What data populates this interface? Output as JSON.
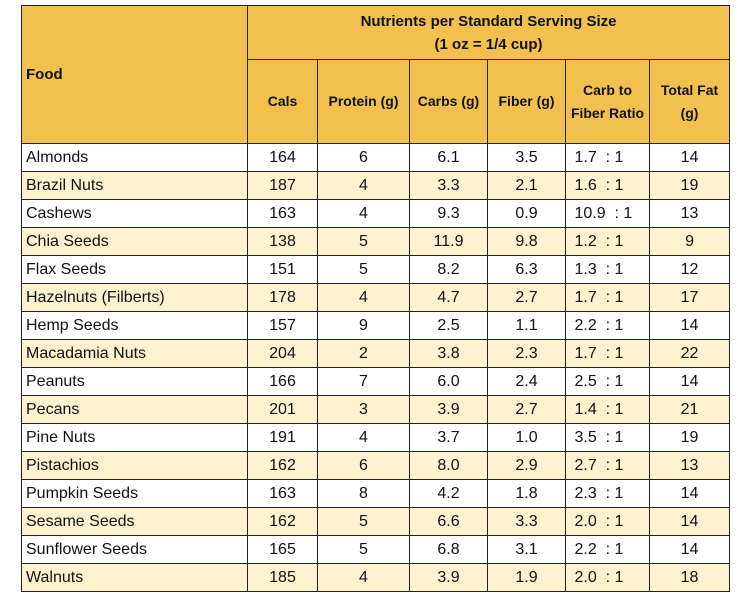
{
  "table": {
    "food_header": "Food",
    "group_header_line1": "Nutrients per Standard Serving Size",
    "group_header_line2": "(1 oz = 1/4 cup)",
    "columns": [
      "Cals",
      "Protein (g)",
      "Carbs (g)",
      "Fiber (g)",
      "Carb to\nFiber Ratio",
      "Total Fat\n(g)"
    ],
    "columns_display": {
      "cals": "Cals",
      "protein": "Protein (g)",
      "carbs": "Carbs (g)",
      "fiber": "Fiber (g)",
      "ratio_line1": "Carb to",
      "ratio_line2": "Fiber Ratio",
      "fat_line1": "Total Fat",
      "fat_line2": "(g)"
    },
    "rows": [
      {
        "food": "Almonds",
        "cals": "164",
        "protein": "6",
        "carbs": "6.1",
        "fiber": "3.5",
        "ratio": "1.7  : 1",
        "fat": "14"
      },
      {
        "food": "Brazil Nuts",
        "cals": "187",
        "protein": "4",
        "carbs": "3.3",
        "fiber": "2.1",
        "ratio": "1.6  : 1",
        "fat": "19"
      },
      {
        "food": "Cashews",
        "cals": "163",
        "protein": "4",
        "carbs": "9.3",
        "fiber": "0.9",
        "ratio": "10.9  : 1",
        "fat": "13"
      },
      {
        "food": "Chia Seeds",
        "cals": "138",
        "protein": "5",
        "carbs": "11.9",
        "fiber": "9.8",
        "ratio": "1.2  : 1",
        "fat": "9"
      },
      {
        "food": "Flax Seeds",
        "cals": "151",
        "protein": "5",
        "carbs": "8.2",
        "fiber": "6.3",
        "ratio": "1.3  : 1",
        "fat": "12"
      },
      {
        "food": "Hazelnuts (Filberts)",
        "cals": "178",
        "protein": "4",
        "carbs": "4.7",
        "fiber": "2.7",
        "ratio": "1.7  : 1",
        "fat": "17"
      },
      {
        "food": "Hemp Seeds",
        "cals": "157",
        "protein": "9",
        "carbs": "2.5",
        "fiber": "1.1",
        "ratio": "2.2  : 1",
        "fat": "14"
      },
      {
        "food": "Macadamia Nuts",
        "cals": "204",
        "protein": "2",
        "carbs": "3.8",
        "fiber": "2.3",
        "ratio": "1.7  : 1",
        "fat": "22"
      },
      {
        "food": "Peanuts",
        "cals": "166",
        "protein": "7",
        "carbs": "6.0",
        "fiber": "2.4",
        "ratio": "2.5  : 1",
        "fat": "14"
      },
      {
        "food": "Pecans",
        "cals": "201",
        "protein": "3",
        "carbs": "3.9",
        "fiber": "2.7",
        "ratio": "1.4  : 1",
        "fat": "21"
      },
      {
        "food": "Pine Nuts",
        "cals": "191",
        "protein": "4",
        "carbs": "3.7",
        "fiber": "1.0",
        "ratio": "3.5  : 1",
        "fat": "19"
      },
      {
        "food": "Pistachios",
        "cals": "162",
        "protein": "6",
        "carbs": "8.0",
        "fiber": "2.9",
        "ratio": "2.7  : 1",
        "fat": "13"
      },
      {
        "food": "Pumpkin Seeds",
        "cals": "163",
        "protein": "8",
        "carbs": "4.2",
        "fiber": "1.8",
        "ratio": "2.3  : 1",
        "fat": "14"
      },
      {
        "food": "Sesame Seeds",
        "cals": "162",
        "protein": "5",
        "carbs": "6.6",
        "fiber": "3.3",
        "ratio": "2.0  : 1",
        "fat": "14"
      },
      {
        "food": "Sunflower Seeds",
        "cals": "165",
        "protein": "5",
        "carbs": "6.8",
        "fiber": "3.1",
        "ratio": "2.2  : 1",
        "fat": "14"
      },
      {
        "food": "Walnuts",
        "cals": "185",
        "protein": "4",
        "carbs": "3.9",
        "fiber": "1.9",
        "ratio": "2.0  : 1",
        "fat": "18"
      }
    ]
  },
  "colors": {
    "header_bg": "#f2c14d",
    "alt_row_bg": "#fdf1cf",
    "border": "#222222"
  }
}
